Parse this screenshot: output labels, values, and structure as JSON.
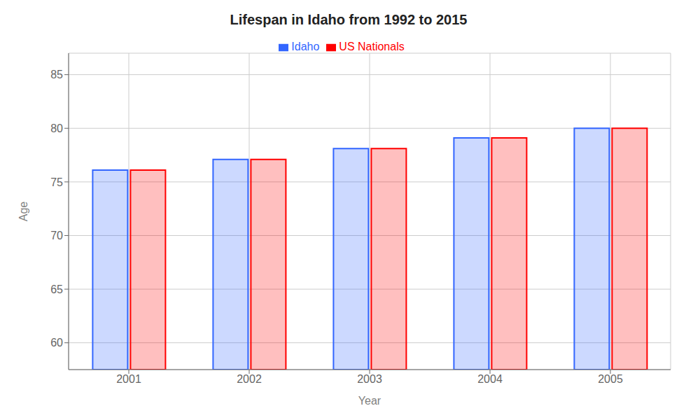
{
  "chart_data": {
    "type": "bar",
    "title": "Lifespan in Idaho from 1992 to 2015",
    "x_label": "Year",
    "y_label": "Age",
    "categories": [
      "2001",
      "2002",
      "2003",
      "2004",
      "2005"
    ],
    "series": [
      {
        "name": "Idaho",
        "color": "#3366ff",
        "values": [
          76.1,
          77.1,
          78.1,
          79.1,
          80.0
        ]
      },
      {
        "name": "US Nationals",
        "color": "#ff0000",
        "values": [
          76.1,
          77.1,
          78.1,
          79.1,
          80.0
        ]
      }
    ],
    "ylim": [
      57.5,
      87
    ],
    "yticks": [
      60,
      65,
      70,
      75,
      80,
      85
    ],
    "grid": true,
    "legend": "top"
  }
}
